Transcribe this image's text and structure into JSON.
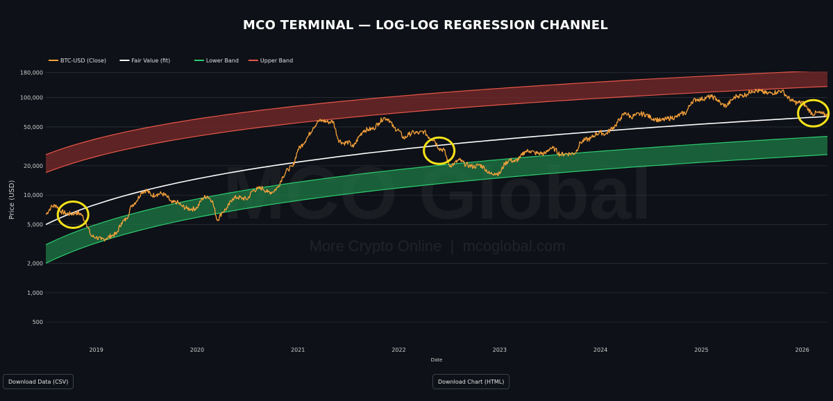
{
  "chart_data": {
    "type": "line",
    "title": "MCO TERMINAL — LOG-LOG REGRESSION CHANNEL",
    "xlabel": "Date",
    "ylabel": "Price (USD)",
    "y_scale": "log",
    "ylim": [
      380,
      185000
    ],
    "xlim": [
      2018.5,
      2026.25
    ],
    "y_ticks": [
      {
        "value": 500,
        "label": "500"
      },
      {
        "value": 1000,
        "label": "1,000"
      },
      {
        "value": 2000,
        "label": "2,000"
      },
      {
        "value": 5000,
        "label": "5,000"
      },
      {
        "value": 10000,
        "label": "10,000"
      },
      {
        "value": 20000,
        "label": "20,000"
      },
      {
        "value": 50000,
        "label": "50,000"
      },
      {
        "value": 100000,
        "label": "100,000"
      },
      {
        "value": 180000,
        "label": "180,000"
      }
    ],
    "x_ticks": [
      {
        "value": 2019,
        "label": "2019"
      },
      {
        "value": 2020,
        "label": "2020"
      },
      {
        "value": 2021,
        "label": "2021"
      },
      {
        "value": 2022,
        "label": "2022"
      },
      {
        "value": 2023,
        "label": "2023"
      },
      {
        "value": 2024,
        "label": "2024"
      },
      {
        "value": 2025,
        "label": "2025"
      },
      {
        "value": 2026,
        "label": "2026"
      }
    ],
    "grid": true,
    "legend_position": "top-left",
    "legend": [
      {
        "name": "BTC-USD (Close)",
        "color": "#f7a23b"
      },
      {
        "name": "Fair Value (fit)",
        "color": "#ffffff"
      },
      {
        "name": "Lower Band",
        "color": "#2ecc71"
      },
      {
        "name": "Upper Band",
        "color": "#e8574a"
      }
    ],
    "watermark": {
      "main": "MCO Global",
      "sub": "More Crypto Online  |  mcoglobal.com"
    },
    "colors": {
      "btc": "#f7a23b",
      "fair": "#ffffff",
      "lower": "#2ecc71",
      "lower_fill": "#1e7a45",
      "upper": "#e8574a",
      "upper_fill": "#7a2a2a",
      "highlight": "#f5e21a"
    },
    "series": [
      {
        "name": "BTC-USD (Close)",
        "x": [
          2018.5,
          2018.55,
          2018.6,
          2018.65,
          2018.7,
          2018.75,
          2018.8,
          2018.85,
          2018.9,
          2018.95,
          2019.0,
          2019.05,
          2019.1,
          2019.15,
          2019.2,
          2019.25,
          2019.3,
          2019.35,
          2019.4,
          2019.45,
          2019.5,
          2019.55,
          2019.6,
          2019.65,
          2019.7,
          2019.75,
          2019.8,
          2019.85,
          2019.9,
          2019.95,
          2020.0,
          2020.05,
          2020.1,
          2020.15,
          2020.2,
          2020.25,
          2020.3,
          2020.35,
          2020.4,
          2020.45,
          2020.5,
          2020.55,
          2020.6,
          2020.65,
          2020.7,
          2020.75,
          2020.8,
          2020.85,
          2020.9,
          2020.95,
          2021.0,
          2021.05,
          2021.1,
          2021.15,
          2021.2,
          2021.25,
          2021.3,
          2021.35,
          2021.4,
          2021.45,
          2021.5,
          2021.55,
          2021.6,
          2021.65,
          2021.7,
          2021.75,
          2021.8,
          2021.85,
          2021.9,
          2021.95,
          2022.0,
          2022.05,
          2022.1,
          2022.15,
          2022.2,
          2022.25,
          2022.3,
          2022.35,
          2022.4,
          2022.45,
          2022.5,
          2022.55,
          2022.6,
          2022.65,
          2022.7,
          2022.75,
          2022.8,
          2022.85,
          2022.9,
          2022.95,
          2023.0,
          2023.05,
          2023.1,
          2023.15,
          2023.2,
          2023.25,
          2023.3,
          2023.35,
          2023.4,
          2023.45,
          2023.5,
          2023.55,
          2023.6,
          2023.65,
          2023.7,
          2023.75,
          2023.8,
          2023.85,
          2023.9,
          2023.95,
          2024.0,
          2024.05,
          2024.1,
          2024.15,
          2024.2,
          2024.25,
          2024.3,
          2024.35,
          2024.4,
          2024.45,
          2024.5,
          2024.55,
          2024.6,
          2024.65,
          2024.7,
          2024.75,
          2024.8,
          2024.85,
          2024.9,
          2024.95,
          2025.0,
          2025.05,
          2025.1,
          2025.15,
          2025.2,
          2025.25,
          2025.3,
          2025.35,
          2025.4,
          2025.45,
          2025.5,
          2025.55,
          2025.6,
          2025.65,
          2025.7,
          2025.75,
          2025.8,
          2025.85,
          2025.9,
          2025.95,
          2026.0,
          2026.05,
          2026.1,
          2026.15,
          2026.2,
          2026.25
        ],
        "y": [
          6300,
          7500,
          7900,
          6800,
          6500,
          6400,
          6600,
          6400,
          5200,
          3800,
          3700,
          3500,
          3600,
          3850,
          4000,
          5200,
          5700,
          7800,
          8700,
          10800,
          11200,
          9900,
          10200,
          10400,
          9700,
          8300,
          8500,
          7700,
          7300,
          7200,
          7400,
          9200,
          9800,
          8800,
          5500,
          6700,
          7400,
          9200,
          9500,
          9300,
          9100,
          11100,
          11600,
          11800,
          10700,
          10800,
          12000,
          15500,
          18400,
          19700,
          29300,
          33500,
          40000,
          49000,
          57000,
          58000,
          56000,
          57000,
          37000,
          34000,
          35000,
          31000,
          39000,
          46000,
          47000,
          48000,
          55000,
          62000,
          60000,
          49000,
          46000,
          38000,
          42000,
          44000,
          43000,
          45000,
          39000,
          37000,
          30000,
          29000,
          20000,
          21000,
          23000,
          21000,
          20000,
          19500,
          20500,
          19000,
          16500,
          16800,
          16600,
          21000,
          23000,
          22000,
          24000,
          28000,
          28500,
          27000,
          26800,
          26500,
          30500,
          29500,
          26000,
          26500,
          26600,
          27000,
          34500,
          37000,
          37800,
          42000,
          44000,
          42000,
          47000,
          52000,
          62000,
          70000,
          63000,
          66000,
          68000,
          67000,
          62000,
          60000,
          58000,
          60000,
          62000,
          63000,
          68000,
          70000,
          90000,
          96000,
          96000,
          100000,
          102000,
          97000,
          85000,
          82000,
          94000,
          104000,
          105000,
          108000,
          118000,
          117000,
          115000,
          110000,
          112000,
          114000,
          118000,
          102000,
          92000,
          88000,
          90000,
          78000,
          68000,
          70000,
          68000,
          66000
        ]
      },
      {
        "name": "Fair Value (fit)",
        "fit": {
          "base": 5000,
          "at": 2018.5,
          "end": 64000,
          "end_at": 2026.25,
          "growth": 2.2
        }
      },
      {
        "name": "Upper Band",
        "lower_fit": {
          "base": 17000,
          "at": 2018.5,
          "end": 130000,
          "end_at": 2026.25
        },
        "upper_fit": {
          "base": 26000,
          "at": 2018.5,
          "end": 190000,
          "end_at": 2026.25
        }
      },
      {
        "name": "Lower Band",
        "lower_fit": {
          "base": 2000,
          "at": 2018.5,
          "end": 26000,
          "end_at": 2026.25
        },
        "upper_fit": {
          "base": 3100,
          "at": 2018.5,
          "end": 40000,
          "end_at": 2026.25
        }
      }
    ],
    "highlights": [
      {
        "x": 2018.77,
        "y": 6300
      },
      {
        "x": 2022.4,
        "y": 28500
      },
      {
        "x": 2026.11,
        "y": 69000
      }
    ]
  },
  "buttons": {
    "download_csv": "Download Data (CSV)",
    "download_html": "Download Chart (HTML)"
  }
}
